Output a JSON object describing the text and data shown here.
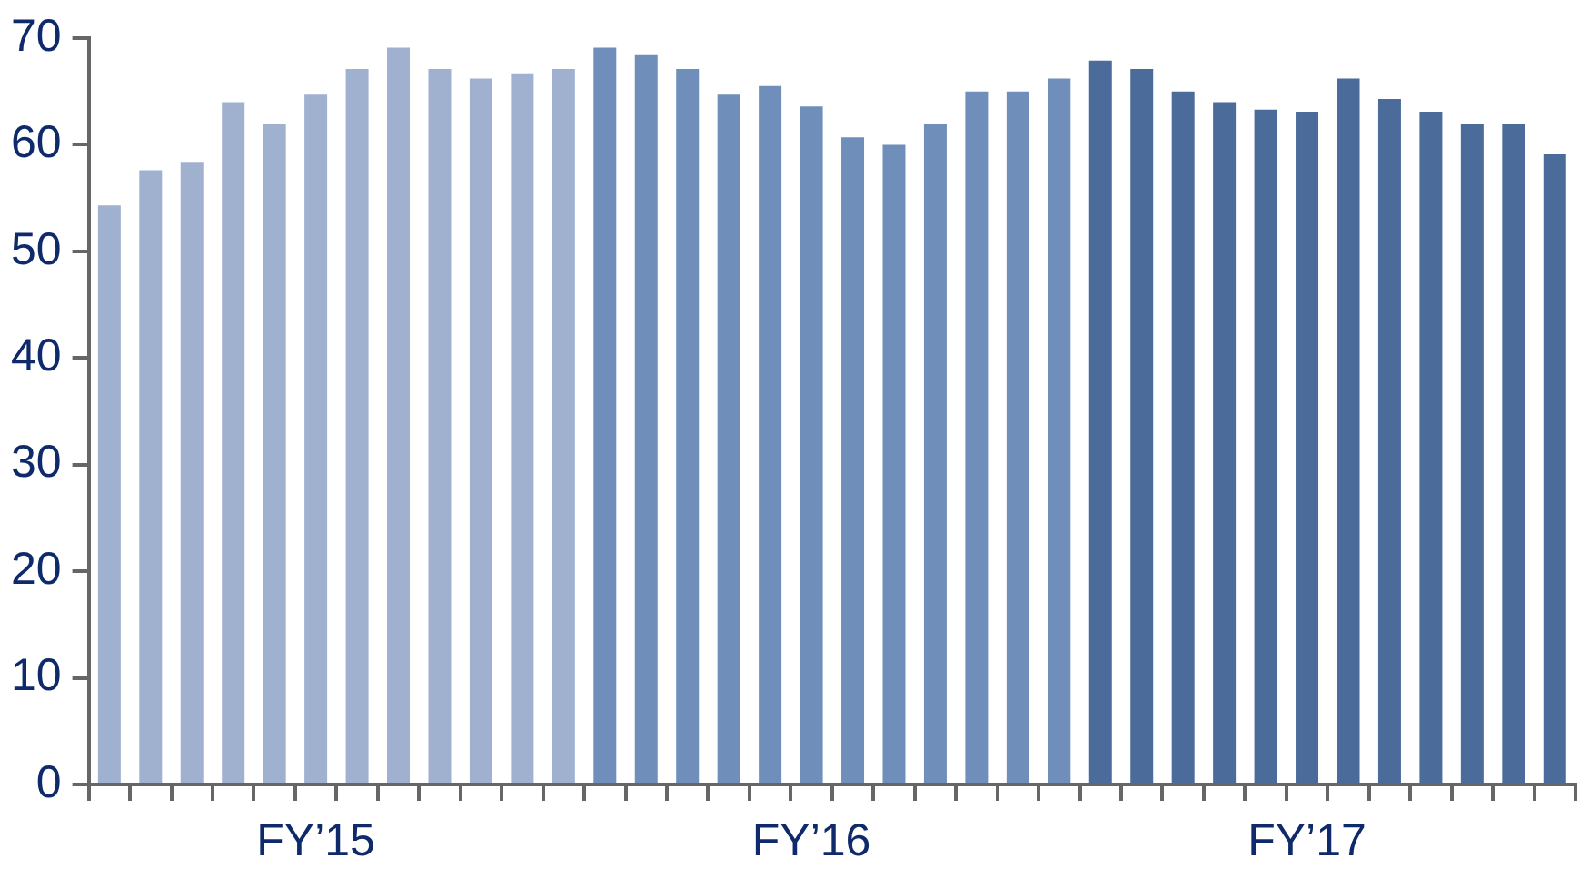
{
  "chart_data": {
    "type": "bar",
    "categories": [
      null,
      null,
      null,
      null,
      null,
      "FY’15",
      null,
      null,
      null,
      null,
      null,
      null,
      null,
      null,
      null,
      null,
      null,
      "FY’16",
      null,
      null,
      null,
      null,
      null,
      null,
      null,
      null,
      null,
      null,
      null,
      "FY’17",
      null,
      null,
      null,
      null,
      null,
      null
    ],
    "values": [
      54.3,
      57.6,
      58.4,
      64.0,
      61.9,
      64.7,
      67.1,
      69.1,
      67.1,
      66.2,
      66.7,
      67.1,
      69.1,
      68.4,
      67.1,
      64.7,
      65.5,
      63.6,
      60.7,
      60.0,
      61.9,
      65.0,
      65.0,
      66.2,
      67.9,
      67.1,
      65.0,
      64.0,
      63.3,
      63.1,
      66.2,
      64.3,
      63.1,
      61.9,
      61.9,
      59.1
    ],
    "colors": [
      "#9fb1cf",
      "#9fb1cf",
      "#9fb1cf",
      "#9fb1cf",
      "#9fb1cf",
      "#9fb1cf",
      "#9fb1cf",
      "#9fb1cf",
      "#9fb1cf",
      "#9fb1cf",
      "#9fb1cf",
      "#9fb1cf",
      "#6f8fba",
      "#6f8fba",
      "#6f8fba",
      "#6f8fba",
      "#6f8fba",
      "#6f8fba",
      "#6f8fba",
      "#6f8fba",
      "#6f8fba",
      "#6f8fba",
      "#6f8fba",
      "#6f8fba",
      "#4b6b9a",
      "#4b6b9a",
      "#4b6b9a",
      "#4b6b9a",
      "#4b6b9a",
      "#4b6b9a",
      "#4b6b9a",
      "#4b6b9a",
      "#4b6b9a",
      "#4b6b9a",
      "#4b6b9a",
      "#4b6b9a"
    ],
    "ylim": [
      0,
      70
    ],
    "yticks": [
      0,
      10,
      20,
      30,
      40,
      50,
      60,
      70
    ],
    "grid": false,
    "legend": false
  }
}
